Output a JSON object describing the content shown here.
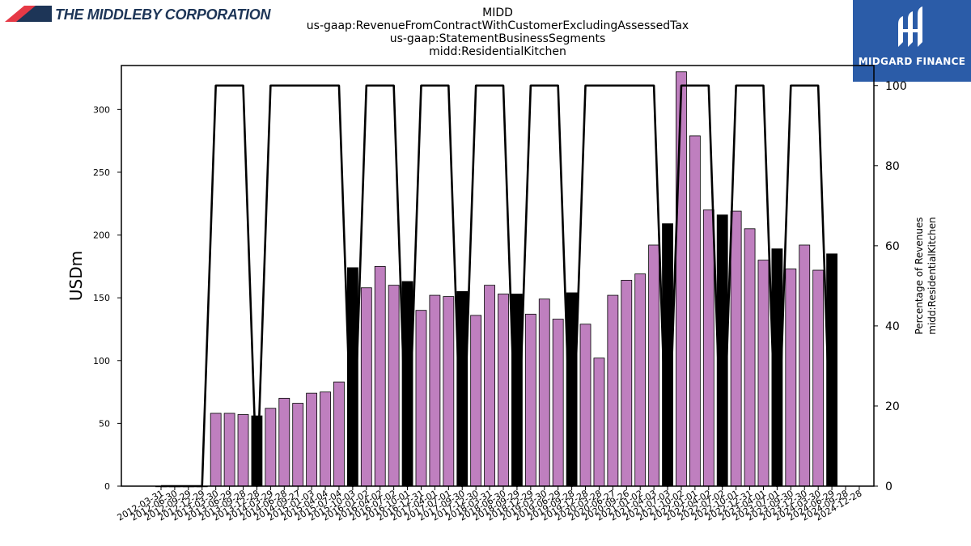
{
  "header": {
    "title_lines": [
      "MIDD",
      "us-gaap:RevenueFromContractWithCustomerExcludingAssessedTax",
      "us-gaap:StatementBusinessSegments",
      "midd:ResidentialKitchen"
    ]
  },
  "branding": {
    "left_logo_text": "THE MIDDLEBY CORPORATION",
    "right_logo_text": "MIDGARD FINANCE",
    "left_color": "#1d3557",
    "left_accent_color": "#e63946",
    "right_bg_color": "#2b5ca8"
  },
  "chart_data": {
    "type": "bar",
    "ylabel": "USDm",
    "ylabel_right": [
      "Percentage of Revenues",
      "midd:ResidentialKitchen"
    ],
    "ylim": [
      0,
      335
    ],
    "ylim_right": [
      0,
      105
    ],
    "yticks": [
      0,
      50,
      100,
      150,
      200,
      250,
      300
    ],
    "yticks_right": [
      0,
      20,
      40,
      60,
      80,
      100
    ],
    "grid": false,
    "colors": {
      "quarter_bar": "#bf7fbf",
      "annual_bar": "#000000",
      "line": "#000000"
    },
    "categories": [
      "2012-03-31",
      "2012-06-30",
      "2012-09-29",
      "2012-12-29",
      "2013-03-30",
      "2013-06-29",
      "2013-09-28",
      "2013-12-28",
      "2014-03-29",
      "2014-06-28",
      "2014-09-27",
      "2015-01-03",
      "2015-04-04",
      "2015-07-04",
      "2015-10-03",
      "2016-01-02",
      "2016-04-02",
      "2016-07-02",
      "2016-10-01",
      "2016-12-31",
      "2017-04-01",
      "2017-07-01",
      "2017-09-30",
      "2017-12-30",
      "2018-03-31",
      "2018-06-30",
      "2018-09-29",
      "2018-12-29",
      "2019-03-30",
      "2019-06-29",
      "2019-09-28",
      "2019-12-28",
      "2020-03-28",
      "2020-06-27",
      "2020-09-26",
      "2021-01-02",
      "2021-04-03",
      "2021-07-03",
      "2021-10-02",
      "2022-01-01",
      "2022-04-02",
      "2022-07-02",
      "2022-10-01",
      "2022-12-31",
      "2023-04-01",
      "2023-07-01",
      "2023-09-30",
      "2023-12-30",
      "2024-03-30",
      "2024-06-29",
      "2024-09-28",
      "2024-12-28"
    ],
    "series": [
      {
        "kind": "bars",
        "values": [
          0,
          0,
          0,
          0,
          58,
          58,
          57,
          56,
          62,
          70,
          66,
          74,
          75,
          83,
          174,
          158,
          175,
          160,
          163,
          140,
          152,
          151,
          155,
          136,
          160,
          153,
          153,
          137,
          149,
          133,
          154,
          129,
          102,
          152,
          164,
          169,
          192,
          209,
          330,
          279,
          220,
          216,
          219,
          205,
          180,
          189,
          173,
          192,
          172,
          185,
          null,
          null
        ],
        "annual": [
          false,
          false,
          false,
          false,
          false,
          false,
          false,
          true,
          false,
          false,
          false,
          false,
          false,
          false,
          true,
          false,
          false,
          false,
          true,
          false,
          false,
          false,
          true,
          false,
          false,
          false,
          true,
          false,
          false,
          false,
          true,
          false,
          false,
          false,
          false,
          false,
          false,
          true,
          false,
          false,
          false,
          true,
          false,
          false,
          false,
          true,
          false,
          false,
          false,
          true,
          null,
          null
        ]
      },
      {
        "kind": "line",
        "axis": "right",
        "values": [
          0,
          0,
          0,
          0,
          100,
          100,
          100,
          0,
          100,
          100,
          100,
          100,
          100,
          100,
          0,
          100,
          100,
          100,
          0,
          100,
          100,
          100,
          0,
          100,
          100,
          100,
          0,
          100,
          100,
          100,
          0,
          100,
          100,
          100,
          100,
          100,
          100,
          0,
          100,
          100,
          100,
          0,
          100,
          100,
          100,
          0,
          100,
          100,
          100,
          0,
          null,
          null
        ]
      }
    ]
  }
}
